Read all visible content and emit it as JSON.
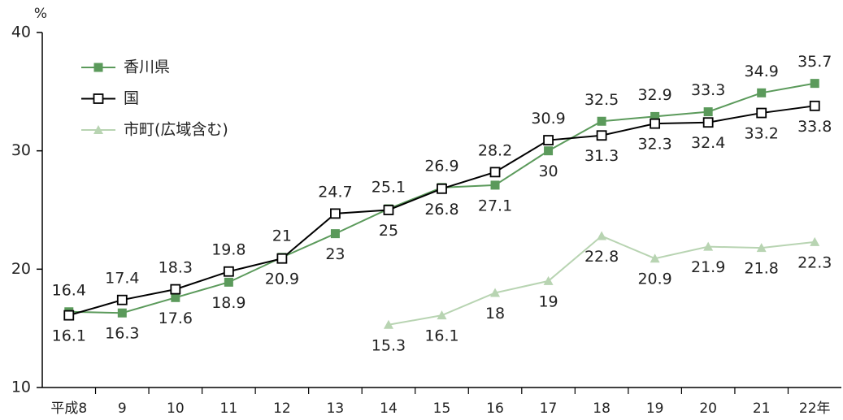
{
  "chart_data": {
    "type": "line",
    "y_unit": "%",
    "categories": [
      "平成8",
      "9",
      "10",
      "11",
      "12",
      "13",
      "14",
      "15",
      "16",
      "17",
      "18",
      "19",
      "20",
      "21",
      "22年"
    ],
    "series": [
      {
        "name": "香川県",
        "color": "#5b9a5b",
        "marker": "square",
        "values": [
          16.4,
          16.3,
          17.6,
          18.9,
          21.0,
          23.0,
          25.1,
          26.9,
          27.1,
          30.0,
          32.5,
          32.9,
          33.3,
          34.9,
          35.7
        ]
      },
      {
        "name": "国",
        "color": "#000000",
        "marker": "open-square",
        "values": [
          16.1,
          17.4,
          18.3,
          19.8,
          20.9,
          24.7,
          25.0,
          26.8,
          28.2,
          30.9,
          31.3,
          32.3,
          32.4,
          33.2,
          33.8
        ]
      },
      {
        "name": "市町(広域含む)",
        "color": "#b8d4b2",
        "marker": "triangle",
        "values": [
          null,
          null,
          null,
          null,
          null,
          null,
          15.3,
          16.1,
          18.0,
          19.0,
          22.8,
          20.9,
          21.9,
          21.8,
          22.3
        ]
      }
    ],
    "ylim": [
      10,
      40
    ],
    "yticks": [
      10,
      20,
      30,
      40
    ],
    "legend": "upper-left"
  }
}
